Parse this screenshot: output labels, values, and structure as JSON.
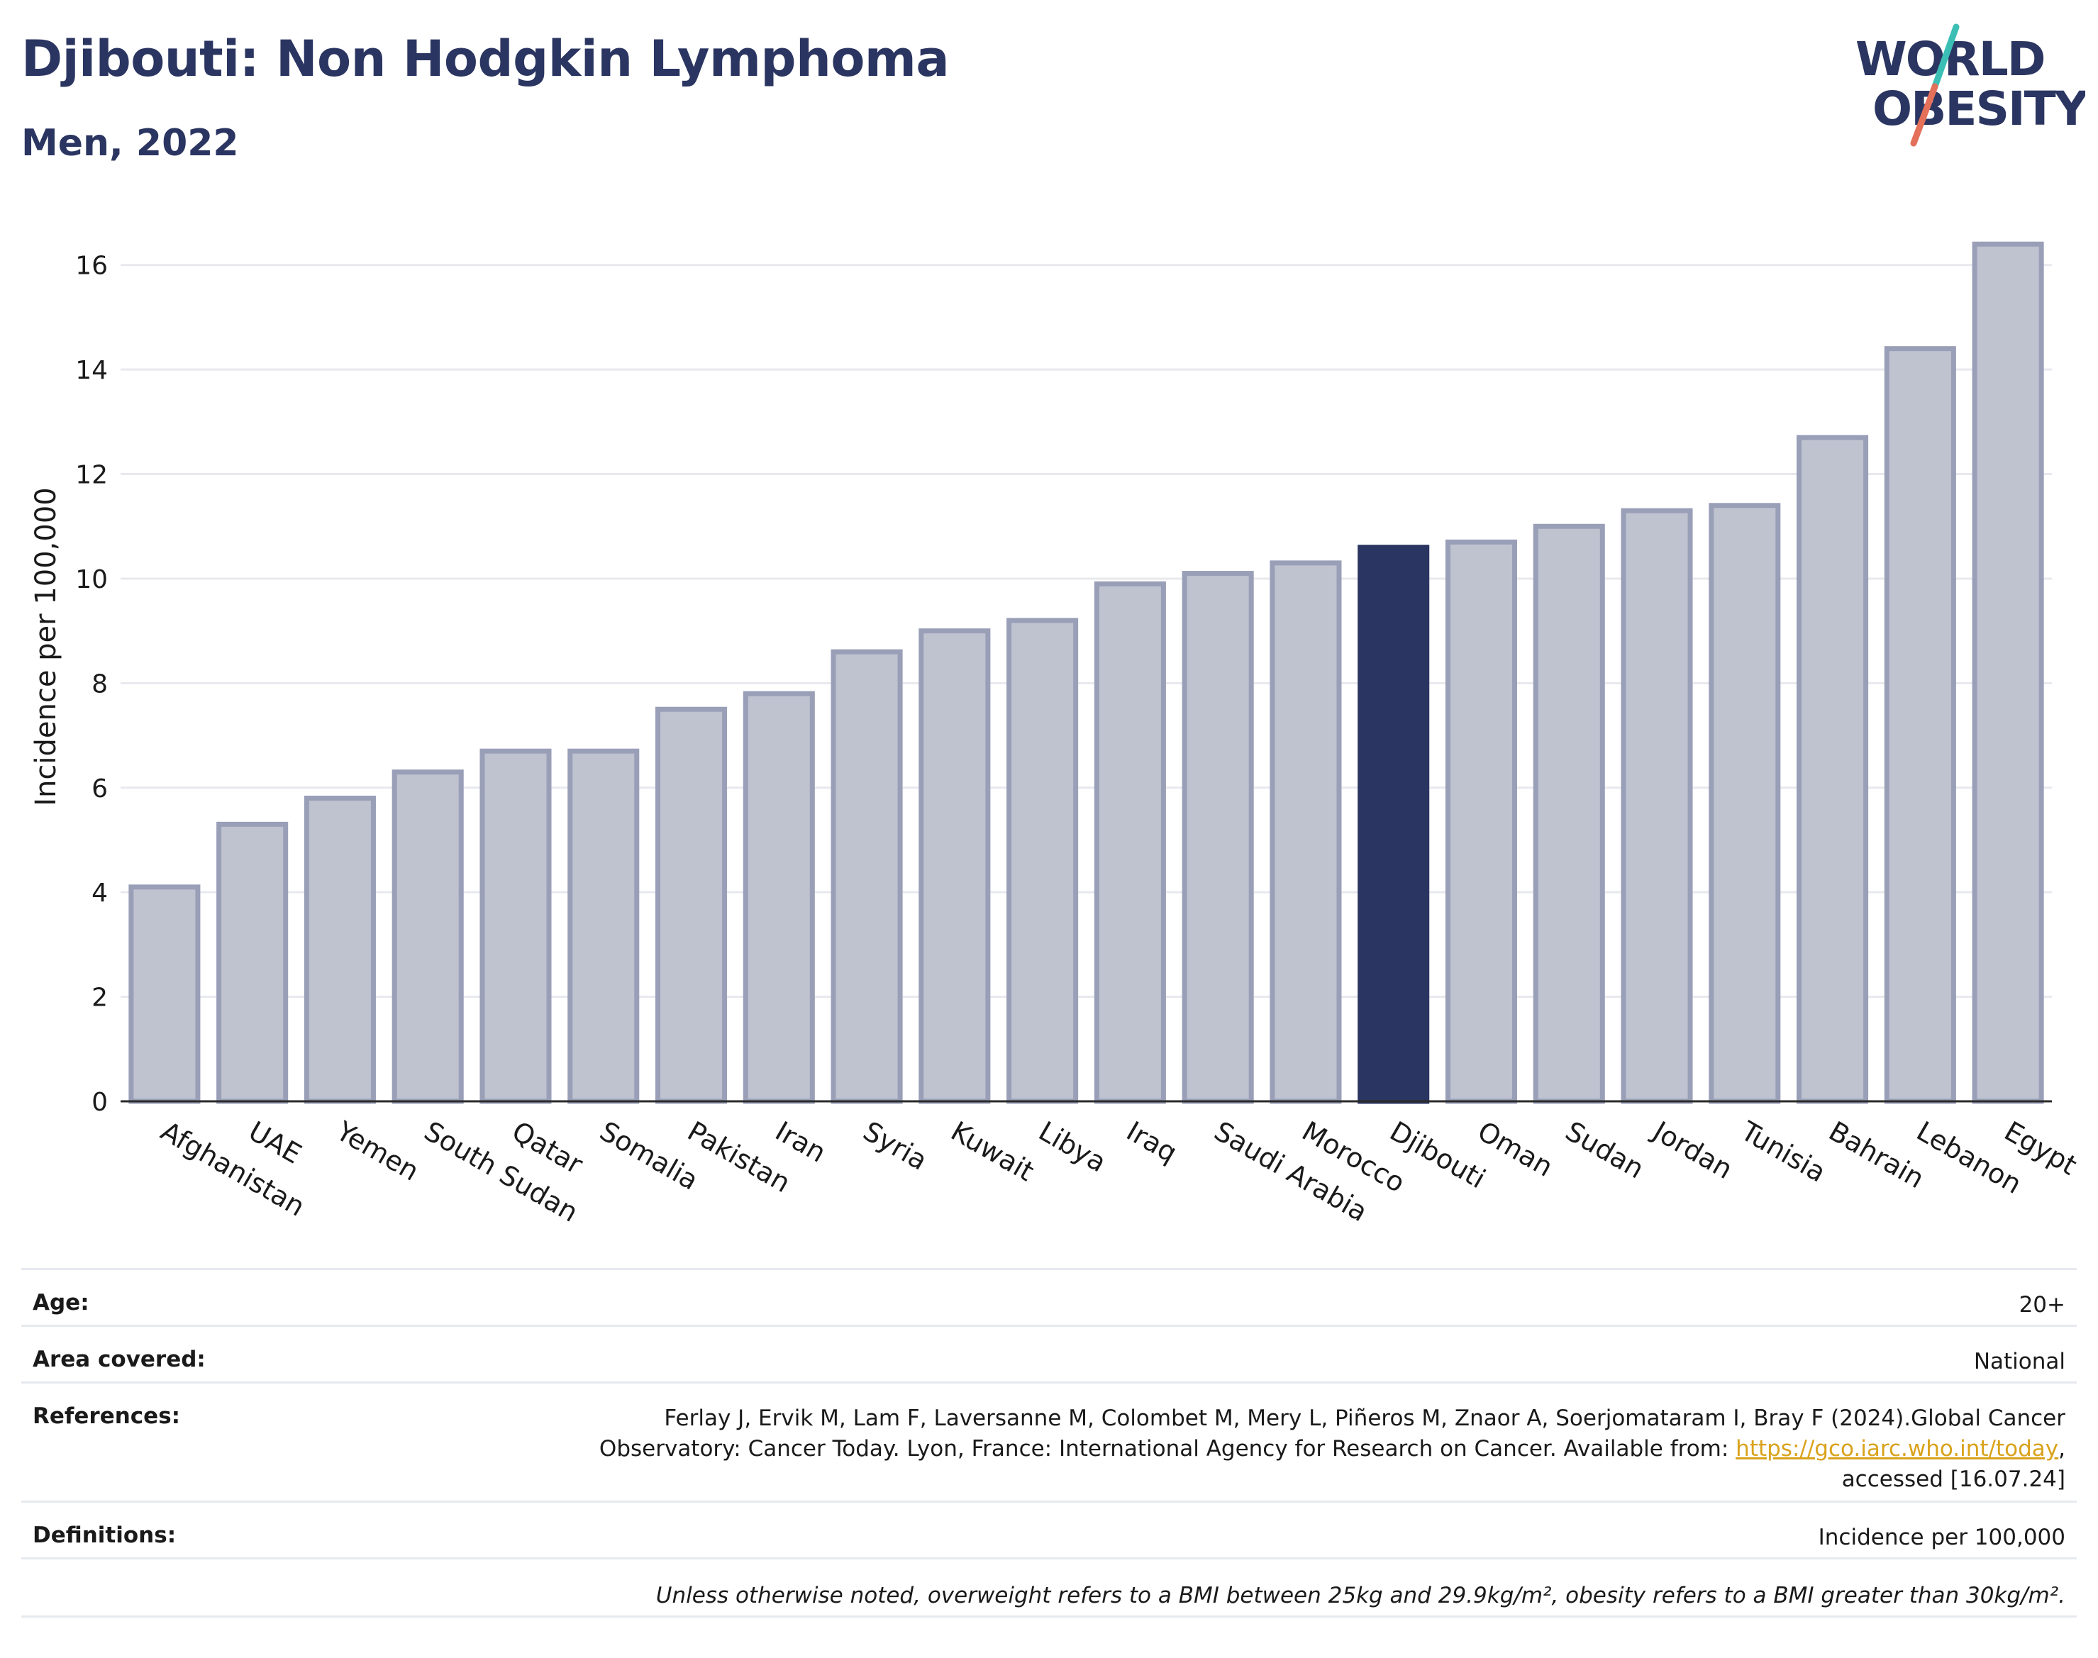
{
  "header": {
    "title": "Djibouti: Non Hodgkin Lymphoma",
    "subtitle": "Men, 2022"
  },
  "logo": {
    "line1": "WORLD",
    "line2": "OBESITY"
  },
  "chart_data": {
    "type": "bar",
    "title": "Djibouti: Non Hodgkin Lymphoma",
    "subtitle": "Men, 2022",
    "xlabel": "",
    "ylabel": "Incidence per 100,000",
    "ylim": [
      0,
      17
    ],
    "yticks": [
      0,
      2,
      4,
      6,
      8,
      10,
      12,
      14,
      16
    ],
    "grid": true,
    "highlight": "Djibouti",
    "categories": [
      "Afghanistan",
      "UAE",
      "Yemen",
      "South Sudan",
      "Qatar",
      "Somalia",
      "Pakistan",
      "Iran",
      "Syria",
      "Kuwait",
      "Libya",
      "Iraq",
      "Saudi Arabia",
      "Morocco",
      "Djibouti",
      "Oman",
      "Sudan",
      "Jordan",
      "Tunisia",
      "Bahrain",
      "Lebanon",
      "Egypt"
    ],
    "values": [
      4.1,
      5.3,
      5.8,
      6.3,
      6.7,
      6.7,
      7.5,
      7.8,
      8.6,
      9.0,
      9.2,
      9.9,
      10.1,
      10.3,
      10.6,
      10.7,
      11.0,
      11.3,
      11.4,
      12.7,
      14.4,
      16.4
    ],
    "colors": {
      "bar": "#bfc2cf",
      "bar_border": "#9a9fb8",
      "highlight": "#2b3561",
      "grid": "#e8e9ee",
      "axis": "#2a2a2a"
    }
  },
  "meta": {
    "age_label": "Age:",
    "age_value": "20+",
    "area_label": "Area covered:",
    "area_value": "National",
    "references_label": "References:",
    "references_text_1": "Ferlay J, Ervik M, Lam F, Laversanne M, Colombet M, Mery L, Piñeros M, Znaor A, Soerjomataram I, Bray F (2024).Global Cancer",
    "references_text_2": "Observatory: Cancer Today. Lyon, France: International Agency for Research on Cancer. Available from: ",
    "references_link": "https://gco.iarc.who.int/today",
    "references_text_3": ",",
    "references_text_4": "accessed [16.07.24]",
    "definitions_label": "Definitions:",
    "definitions_value": "Incidence per 100,000",
    "note": "Unless otherwise noted, overweight refers to a BMI between 25kg and 29.9kg/m², obesity refers to a BMI greater than 30kg/m²."
  }
}
